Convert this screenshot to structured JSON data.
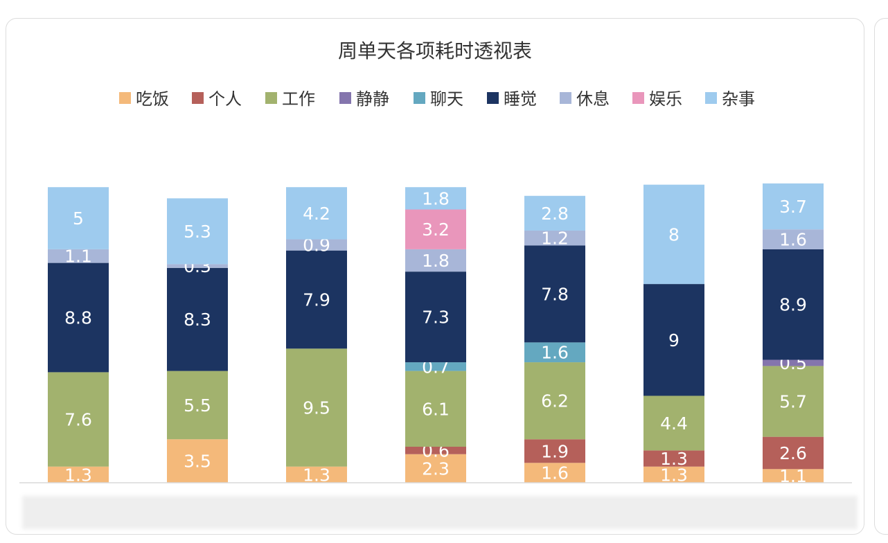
{
  "chart_data": {
    "type": "bar",
    "stacked": true,
    "title": "周单天各项耗时透视表",
    "legend_position": "top",
    "grid": false,
    "ylim": [
      0,
      28
    ],
    "categories": [
      "",
      "",
      "",
      "",
      "",
      "",
      ""
    ],
    "series": [
      {
        "name": "吃饭",
        "color": "#f4b97a",
        "values": [
          1.3,
          3.5,
          1.3,
          2.3,
          1.6,
          1.3,
          1.1
        ]
      },
      {
        "name": "个人",
        "color": "#b5605a",
        "values": [
          null,
          null,
          null,
          0.6,
          1.9,
          1.3,
          2.6
        ]
      },
      {
        "name": "工作",
        "color": "#a2b26e",
        "values": [
          7.6,
          5.5,
          9.5,
          6.1,
          6.2,
          4.4,
          5.7
        ]
      },
      {
        "name": "静静",
        "color": "#8475ad",
        "values": [
          null,
          null,
          null,
          null,
          null,
          null,
          0.5
        ]
      },
      {
        "name": "聊天",
        "color": "#64a8c0",
        "values": [
          null,
          null,
          null,
          0.7,
          1.6,
          null,
          null
        ]
      },
      {
        "name": "睡觉",
        "color": "#1c3461",
        "values": [
          8.8,
          8.3,
          7.9,
          7.3,
          7.8,
          9,
          8.9
        ]
      },
      {
        "name": "休息",
        "color": "#a8b6d8",
        "values": [
          1.1,
          0.3,
          0.9,
          1.8,
          1.2,
          null,
          1.6
        ]
      },
      {
        "name": "娱乐",
        "color": "#e996bb",
        "values": [
          null,
          null,
          null,
          3.2,
          null,
          null,
          null
        ]
      },
      {
        "name": "杂事",
        "color": "#9ecbee",
        "values": [
          5,
          5.3,
          4.2,
          1.8,
          2.8,
          8,
          3.7
        ]
      }
    ]
  }
}
